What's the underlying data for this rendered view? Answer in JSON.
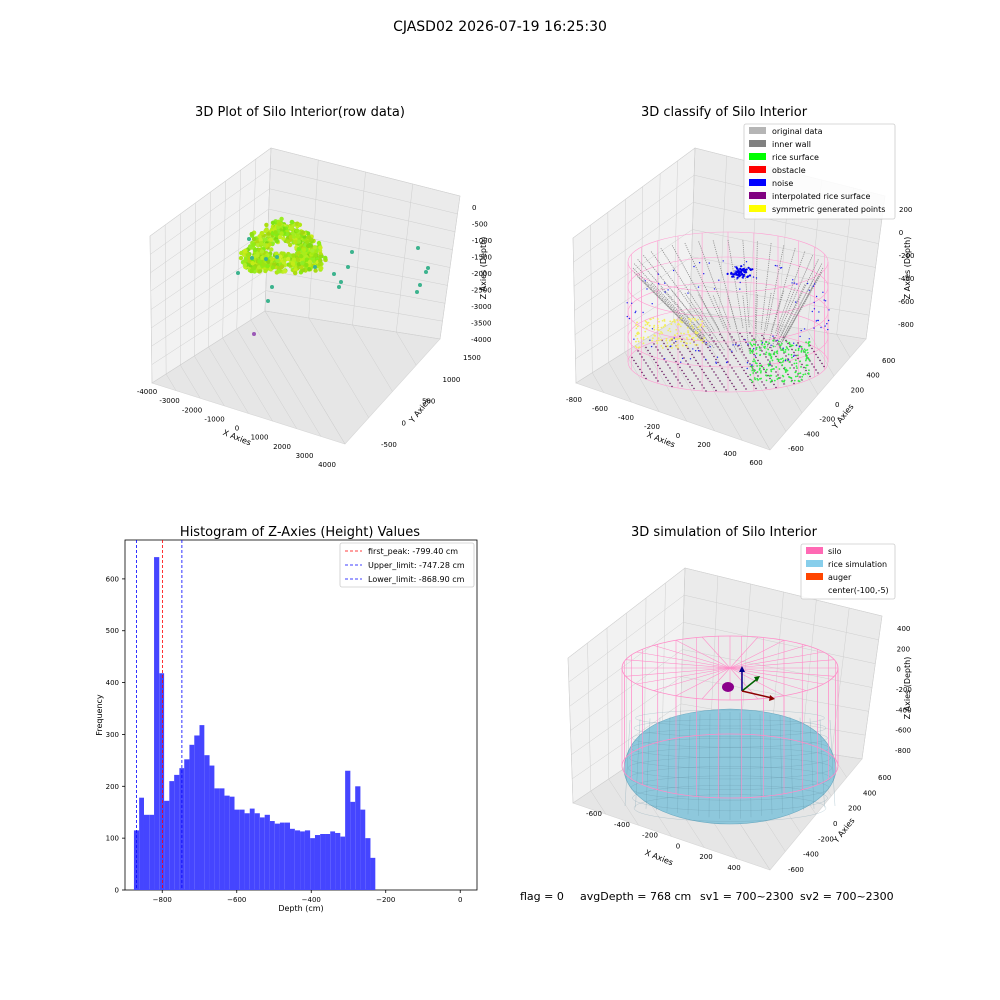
{
  "figure": {
    "suptitle": "CJASD02 2026-07-19 16:25:30"
  },
  "chart_data": [
    {
      "type": "scatter3d",
      "title": "3D Plot of Silo Interior(row data)",
      "xlabel": "X Axies",
      "ylabel": "Y Axies",
      "zlabel": "Z Axies (Depth)",
      "xticks": [
        "-4000",
        "-3000",
        "-2000",
        "-1000",
        "0",
        "1000",
        "2000",
        "3000",
        "4000"
      ],
      "yticks": [
        "-500",
        "0",
        "500",
        "1000",
        "1500"
      ],
      "zticks": [
        "0",
        "-500",
        "-1000",
        "-1500",
        "-2000",
        "-2500",
        "-3000",
        "-3500",
        "-4000"
      ],
      "xlim": [
        -4000,
        4000
      ],
      "ylim": [
        -700,
        1600
      ],
      "zlim": [
        -4000,
        100
      ],
      "grid": true
    },
    {
      "type": "scatter3d",
      "title": "3D classify of Silo Interior",
      "xlabel": "X Axies",
      "ylabel": "Y Axies",
      "zlabel": "Z Axies (Depth)",
      "xticks": [
        "-800",
        "-600",
        "-400",
        "-200",
        "0",
        "200",
        "400",
        "600"
      ],
      "yticks": [
        "-600",
        "-400",
        "-200",
        "0",
        "200",
        "400",
        "600"
      ],
      "zticks": [
        "200",
        "0",
        "-200",
        "-400",
        "-600",
        "-800"
      ],
      "legend": [
        {
          "label": "original data",
          "color": "#b5b5b5"
        },
        {
          "label": "inner wall",
          "color": "#808080"
        },
        {
          "label": "rice surface",
          "color": "#00ff00"
        },
        {
          "label": "obstacle",
          "color": "#ff0000"
        },
        {
          "label": "noise",
          "color": "#0000ff"
        },
        {
          "label": "interpolated rice surface",
          "color": "#800080"
        },
        {
          "label": "symmetric generated points",
          "color": "#ffff00"
        }
      ],
      "legend_position": "top-right",
      "grid": true
    },
    {
      "type": "bar",
      "title": "Histogram of Z-Axies (Height) Values",
      "xlabel": "Depth (cm)",
      "ylabel": "Frequency",
      "xlim": [
        -900,
        45
      ],
      "ylim": [
        0,
        675
      ],
      "xticks": [
        -800,
        -600,
        -400,
        -200,
        0
      ],
      "yticks": [
        0,
        100,
        200,
        300,
        400,
        500,
        600
      ],
      "bar_color": "#4545ff",
      "bins": [
        {
          "x0": -876,
          "x1": -862,
          "v": 115
        },
        {
          "x0": -862,
          "x1": -849,
          "v": 178
        },
        {
          "x0": -849,
          "x1": -835,
          "v": 145
        },
        {
          "x0": -835,
          "x1": -822,
          "v": 145
        },
        {
          "x0": -822,
          "x1": -808,
          "v": 642
        },
        {
          "x0": -808,
          "x1": -795,
          "v": 418
        },
        {
          "x0": -795,
          "x1": -781,
          "v": 172
        },
        {
          "x0": -781,
          "x1": -768,
          "v": 210
        },
        {
          "x0": -768,
          "x1": -754,
          "v": 222
        },
        {
          "x0": -754,
          "x1": -741,
          "v": 235
        },
        {
          "x0": -741,
          "x1": -727,
          "v": 252
        },
        {
          "x0": -727,
          "x1": -714,
          "v": 280
        },
        {
          "x0": -714,
          "x1": -700,
          "v": 298
        },
        {
          "x0": -700,
          "x1": -687,
          "v": 318
        },
        {
          "x0": -687,
          "x1": -673,
          "v": 260
        },
        {
          "x0": -673,
          "x1": -660,
          "v": 240
        },
        {
          "x0": -660,
          "x1": -646,
          "v": 196
        },
        {
          "x0": -646,
          "x1": -633,
          "v": 196
        },
        {
          "x0": -633,
          "x1": -619,
          "v": 182
        },
        {
          "x0": -619,
          "x1": -606,
          "v": 180
        },
        {
          "x0": -606,
          "x1": -592,
          "v": 155
        },
        {
          "x0": -592,
          "x1": -579,
          "v": 155
        },
        {
          "x0": -579,
          "x1": -565,
          "v": 148
        },
        {
          "x0": -565,
          "x1": -552,
          "v": 157
        },
        {
          "x0": -552,
          "x1": -538,
          "v": 148
        },
        {
          "x0": -538,
          "x1": -525,
          "v": 140
        },
        {
          "x0": -525,
          "x1": -511,
          "v": 145
        },
        {
          "x0": -511,
          "x1": -498,
          "v": 133
        },
        {
          "x0": -498,
          "x1": -484,
          "v": 128
        },
        {
          "x0": -484,
          "x1": -471,
          "v": 130
        },
        {
          "x0": -471,
          "x1": -457,
          "v": 130
        },
        {
          "x0": -457,
          "x1": -444,
          "v": 118
        },
        {
          "x0": -444,
          "x1": -430,
          "v": 115
        },
        {
          "x0": -430,
          "x1": -417,
          "v": 113
        },
        {
          "x0": -417,
          "x1": -403,
          "v": 115
        },
        {
          "x0": -403,
          "x1": -390,
          "v": 100
        },
        {
          "x0": -390,
          "x1": -376,
          "v": 106
        },
        {
          "x0": -376,
          "x1": -363,
          "v": 108
        },
        {
          "x0": -363,
          "x1": -349,
          "v": 108
        },
        {
          "x0": -349,
          "x1": -336,
          "v": 113
        },
        {
          "x0": -336,
          "x1": -322,
          "v": 110
        },
        {
          "x0": -322,
          "x1": -309,
          "v": 103
        },
        {
          "x0": -309,
          "x1": -295,
          "v": 230
        },
        {
          "x0": -295,
          "x1": -282,
          "v": 170
        },
        {
          "x0": -282,
          "x1": -268,
          "v": 200
        },
        {
          "x0": -268,
          "x1": -255,
          "v": 155
        },
        {
          "x0": -255,
          "x1": -241,
          "v": 100
        },
        {
          "x0": -241,
          "x1": -228,
          "v": 62
        }
      ],
      "vlines": [
        {
          "label": "first_peak: -799.40 cm",
          "x": -799.4,
          "color": "#ff0000"
        },
        {
          "label": "Upper_limit: -747.28 cm",
          "x": -747.28,
          "color": "#0000ff"
        },
        {
          "label": "Lower_limit: -868.90 cm",
          "x": -868.9,
          "color": "#0000ff"
        }
      ],
      "legend_position": "top-right",
      "grid": false
    },
    {
      "type": "surface3d",
      "title": "3D simulation of Silo Interior",
      "xlabel": "X Axies",
      "ylabel": "Y Axies",
      "zlabel": "Z Axies (Depth)",
      "xticks": [
        "-600",
        "-400",
        "-200",
        "0",
        "200",
        "400"
      ],
      "yticks": [
        "-600",
        "-400",
        "-200",
        "0",
        "200",
        "400",
        "600"
      ],
      "zticks": [
        "400",
        "200",
        "0",
        "-200",
        "-400",
        "-600",
        "-800"
      ],
      "legend": [
        {
          "label": "silo",
          "color": "#ff69b4"
        },
        {
          "label": "rice simulation",
          "color": "#87ceeb"
        },
        {
          "label": "auger",
          "color": "#ff4500"
        },
        {
          "label": "center(-100,-5)",
          "color": ""
        }
      ],
      "legend_position": "top-right",
      "grid": true
    }
  ],
  "status": {
    "flag": "flag = 0",
    "avg_depth": "avgDepth = 768 cm",
    "sv1": "sv1 = 700~2300",
    "sv2": "sv2 = 700~2300"
  }
}
